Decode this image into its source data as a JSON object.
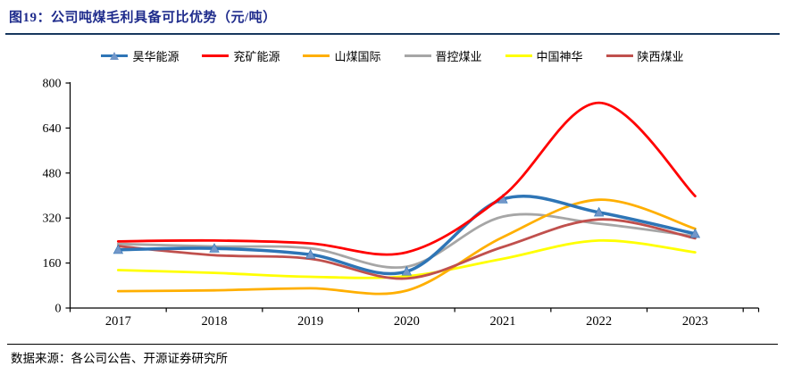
{
  "header": {
    "title": "图19：公司吨煤毛利具备可比优势（元/吨）",
    "title_color": "#1F2C8C"
  },
  "footer": {
    "source": "数据来源：各公司公告、开源证券研究所"
  },
  "chart_data": {
    "type": "line",
    "title": "公司吨煤毛利具备可比优势（元/吨）",
    "xlabel": "",
    "ylabel": "",
    "units": "元/吨",
    "categories": [
      "2017",
      "2018",
      "2019",
      "2020",
      "2021",
      "2022",
      "2023"
    ],
    "series": [
      {
        "name": "昊华能源",
        "color": "#2E75B6",
        "marker": "triangle",
        "marker_color": "#7297C9",
        "values": [
          207,
          212,
          190,
          130,
          387,
          340,
          264
        ]
      },
      {
        "name": "兖矿能源",
        "color": "#FF0000",
        "marker": "none",
        "values": [
          237,
          240,
          230,
          198,
          398,
          730,
          398
        ]
      },
      {
        "name": "山煤国际",
        "color": "#FFAF00",
        "marker": "none",
        "values": [
          60,
          63,
          70,
          62,
          252,
          385,
          282
        ]
      },
      {
        "name": "晋控煤业",
        "color": "#A6A6A6",
        "marker": "none",
        "values": [
          228,
          219,
          212,
          147,
          325,
          300,
          255
        ]
      },
      {
        "name": "中国神华",
        "color": "#FFFF00",
        "marker": "none",
        "values": [
          135,
          125,
          111,
          113,
          175,
          240,
          198
        ]
      },
      {
        "name": "陕西煤业",
        "color": "#C0504D",
        "marker": "none",
        "values": [
          220,
          188,
          175,
          105,
          217,
          315,
          248
        ]
      }
    ],
    "ylim": [
      0,
      800
    ],
    "yticks": [
      0,
      160,
      320,
      480,
      640,
      800
    ],
    "grid": false,
    "legend_position": "top",
    "axis_color": "#000000",
    "smoothed_lines": true
  }
}
